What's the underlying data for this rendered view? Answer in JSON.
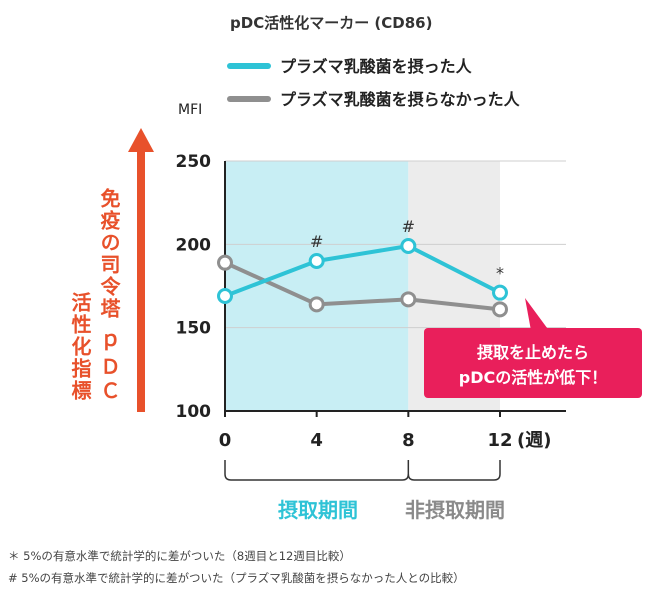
{
  "colors": {
    "intake_series": "#2ec3d6",
    "non_intake_series": "#8f8f8f",
    "intake_region": "#c8eef4",
    "non_intake_region": "#ececec",
    "arrow": "#e8512b",
    "callout": "#e91f5b"
  },
  "chart_data": {
    "type": "line",
    "title": "pDC活性化マーカー (CD86)",
    "ylabel_unit": "MFI",
    "ylabel_vertical": [
      "免疫の司令塔",
      "活性化指標",
      "ｐＤＣ"
    ],
    "x": [
      0,
      4,
      8,
      12
    ],
    "x_tick_labels": [
      "0",
      "4",
      "8",
      "12"
    ],
    "x_unit": "(週)",
    "y_ticks": [
      "100",
      "150",
      "200",
      "250"
    ],
    "ylim": [
      100,
      250
    ],
    "xlim": [
      0,
      12
    ],
    "grid": true,
    "series": [
      {
        "name": "プラズマ乳酸菌を摂った人",
        "values": [
          169,
          190,
          199,
          171
        ]
      },
      {
        "name": "プラズマ乳酸菌を摂らなかった人",
        "values": [
          189,
          164,
          167,
          161
        ]
      }
    ],
    "regions": [
      {
        "label": "摂取期間",
        "x_range": [
          0,
          8
        ]
      },
      {
        "label": "非摂取期間",
        "x_range": [
          8,
          12
        ]
      }
    ],
    "annotations": [
      {
        "x": 4,
        "mark": "#"
      },
      {
        "x": 8,
        "mark": "#"
      },
      {
        "x": 12,
        "mark": "*"
      }
    ],
    "callout": [
      "摂取を止めたら",
      "pDCの活性が低下！"
    ]
  },
  "footnotes": [
    "＊ 5%の有意水準で統計学的に差がついた（8週目と12週目比較）",
    "# 5%の有意水準で統計学的に差がついた（プラズマ乳酸菌を摂らなかった人との比較）"
  ]
}
